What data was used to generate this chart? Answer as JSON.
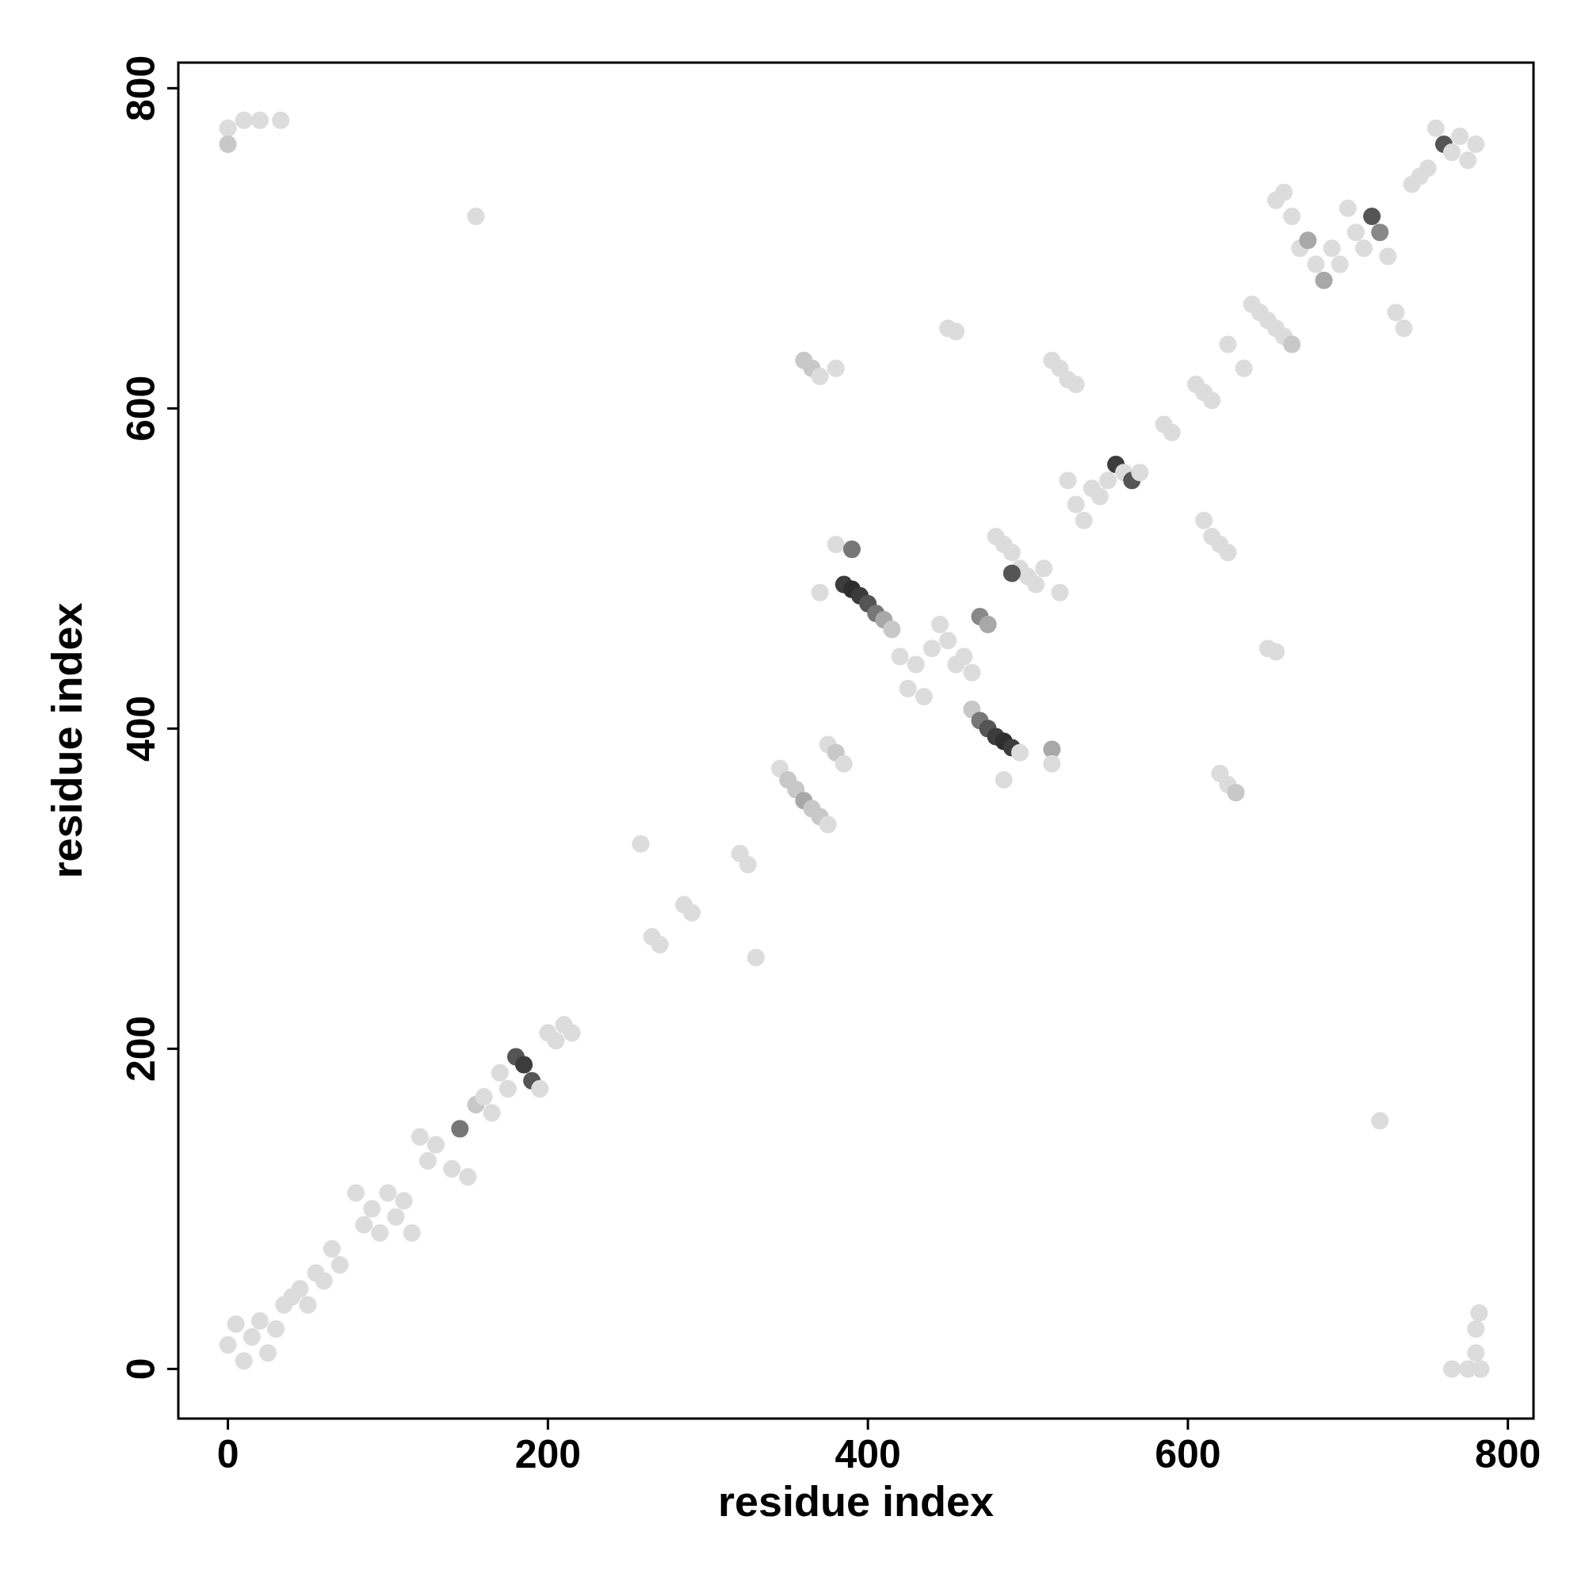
{
  "chart_data": {
    "type": "scatter",
    "xlabel": "residue index",
    "ylabel": "residue index",
    "xlim": [
      -31,
      816
    ],
    "ylim": [
      -31,
      816
    ],
    "xticks": [
      0,
      200,
      400,
      600,
      800
    ],
    "yticks": [
      0,
      200,
      400,
      600,
      800
    ],
    "marker": "circle",
    "x": [
      0,
      5,
      10,
      15,
      20,
      25,
      30,
      35,
      40,
      45,
      50,
      55,
      60,
      65,
      70,
      80,
      85,
      90,
      95,
      100,
      105,
      110,
      115,
      120,
      125,
      130,
      140,
      145,
      150,
      155,
      160,
      165,
      170,
      175,
      180,
      185,
      190,
      195,
      200,
      205,
      210,
      215,
      0,
      0,
      10,
      20,
      33,
      155,
      258,
      265,
      270,
      285,
      290,
      320,
      325,
      330,
      345,
      350,
      355,
      360,
      365,
      370,
      375,
      375,
      380,
      385,
      385,
      390,
      395,
      400,
      405,
      410,
      415,
      380,
      390,
      370,
      420,
      425,
      430,
      435,
      440,
      445,
      450,
      455,
      460,
      465,
      465,
      470,
      475,
      480,
      485,
      490,
      495,
      515,
      515,
      485,
      470,
      475,
      480,
      485,
      490,
      495,
      500,
      505,
      510,
      520,
      490,
      530,
      535,
      540,
      545,
      550,
      555,
      560,
      565,
      570,
      525,
      585,
      590,
      605,
      610,
      615,
      625,
      635,
      640,
      645,
      650,
      655,
      660,
      665,
      655,
      660,
      665,
      670,
      675,
      680,
      685,
      690,
      695,
      700,
      705,
      710,
      715,
      720,
      725,
      730,
      735,
      740,
      745,
      750,
      755,
      760,
      765,
      770,
      775,
      780,
      515,
      520,
      525,
      530,
      360,
      365,
      370,
      380,
      450,
      455,
      610,
      615,
      620,
      625,
      620,
      625,
      630,
      650,
      655,
      720,
      765,
      775,
      780,
      780,
      782,
      783
    ],
    "values": [
      15,
      28,
      5,
      20,
      30,
      10,
      25,
      40,
      45,
      50,
      40,
      60,
      55,
      75,
      65,
      110,
      90,
      100,
      85,
      110,
      95,
      105,
      85,
      145,
      130,
      140,
      125,
      150,
      120,
      165,
      170,
      160,
      185,
      175,
      195,
      190,
      180,
      175,
      210,
      205,
      215,
      210,
      775,
      765,
      780,
      780,
      780,
      720,
      328,
      270,
      265,
      290,
      285,
      322,
      315,
      257,
      375,
      368,
      362,
      355,
      350,
      345,
      340,
      390,
      385,
      378,
      490,
      487,
      483,
      478,
      472,
      468,
      462,
      515,
      512,
      485,
      445,
      425,
      440,
      420,
      450,
      465,
      455,
      440,
      445,
      435,
      412,
      405,
      400,
      395,
      392,
      388,
      385,
      387,
      378,
      368,
      470,
      465,
      520,
      515,
      510,
      500,
      495,
      490,
      500,
      485,
      497,
      540,
      530,
      550,
      545,
      555,
      565,
      560,
      555,
      560,
      555,
      590,
      585,
      615,
      610,
      605,
      640,
      625,
      665,
      660,
      655,
      650,
      645,
      640,
      730,
      735,
      720,
      700,
      705,
      690,
      680,
      700,
      690,
      725,
      710,
      700,
      720,
      710,
      695,
      660,
      650,
      740,
      745,
      750,
      775,
      765,
      760,
      770,
      755,
      765,
      630,
      625,
      618,
      615,
      630,
      625,
      620,
      625,
      650,
      648,
      530,
      520,
      515,
      510,
      372,
      365,
      360,
      450,
      448,
      155,
      0,
      0,
      10,
      25,
      35,
      0
    ],
    "colors": [
      "#dcdcdc",
      "#dcdcdc",
      "#dcdcdc",
      "#dcdcdc",
      "#dcdcdc",
      "#dcdcdc",
      "#dcdcdc",
      "#dcdcdc",
      "#dcdcdc",
      "#dcdcdc",
      "#dcdcdc",
      "#dcdcdc",
      "#dcdcdc",
      "#dcdcdc",
      "#dcdcdc",
      "#dcdcdc",
      "#dcdcdc",
      "#dcdcdc",
      "#dcdcdc",
      "#dcdcdc",
      "#dcdcdc",
      "#dcdcdc",
      "#dcdcdc",
      "#dcdcdc",
      "#dcdcdc",
      "#dcdcdc",
      "#dcdcdc",
      "#777777",
      "#dcdcdc",
      "#c8c8c8",
      "#dcdcdc",
      "#dcdcdc",
      "#dcdcdc",
      "#dcdcdc",
      "#555555",
      "#3c3c3c",
      "#555555",
      "#dcdcdc",
      "#dcdcdc",
      "#dcdcdc",
      "#dcdcdc",
      "#dcdcdc",
      "#dcdcdc",
      "#c8c8c8",
      "#dcdcdc",
      "#dcdcdc",
      "#dcdcdc",
      "#dcdcdc",
      "#dcdcdc",
      "#dcdcdc",
      "#dcdcdc",
      "#dcdcdc",
      "#dcdcdc",
      "#dcdcdc",
      "#dcdcdc",
      "#dcdcdc",
      "#dcdcdc",
      "#c8c8c8",
      "#c8c8c8",
      "#a8a8a8",
      "#c8c8c8",
      "#c8c8c8",
      "#dcdcdc",
      "#dcdcdc",
      "#c8c8c8",
      "#dcdcdc",
      "#3c3c3c",
      "#2e2e2e",
      "#3c3c3c",
      "#555555",
      "#777777",
      "#a8a8a8",
      "#c8c8c8",
      "#dcdcdc",
      "#777777",
      "#dcdcdc",
      "#dcdcdc",
      "#dcdcdc",
      "#dcdcdc",
      "#dcdcdc",
      "#dcdcdc",
      "#dcdcdc",
      "#dcdcdc",
      "#dcdcdc",
      "#dcdcdc",
      "#dcdcdc",
      "#c8c8c8",
      "#777777",
      "#555555",
      "#3c3c3c",
      "#2e2e2e",
      "#3c3c3c",
      "#dcdcdc",
      "#a8a8a8",
      "#dcdcdc",
      "#dcdcdc",
      "#888888",
      "#a8a8a8",
      "#dcdcdc",
      "#dcdcdc",
      "#dcdcdc",
      "#dcdcdc",
      "#dcdcdc",
      "#dcdcdc",
      "#dcdcdc",
      "#dcdcdc",
      "#555555",
      "#dcdcdc",
      "#dcdcdc",
      "#dcdcdc",
      "#dcdcdc",
      "#dcdcdc",
      "#3c3c3c",
      "#dcdcdc",
      "#555555",
      "#dcdcdc",
      "#dcdcdc",
      "#dcdcdc",
      "#dcdcdc",
      "#dcdcdc",
      "#dcdcdc",
      "#dcdcdc",
      "#dcdcdc",
      "#dcdcdc",
      "#dcdcdc",
      "#dcdcdc",
      "#dcdcdc",
      "#dcdcdc",
      "#dcdcdc",
      "#c8c8c8",
      "#dcdcdc",
      "#dcdcdc",
      "#dcdcdc",
      "#dcdcdc",
      "#a8a8a8",
      "#dcdcdc",
      "#a8a8a8",
      "#dcdcdc",
      "#dcdcdc",
      "#dcdcdc",
      "#dcdcdc",
      "#dcdcdc",
      "#555555",
      "#888888",
      "#dcdcdc",
      "#dcdcdc",
      "#dcdcdc",
      "#dcdcdc",
      "#dcdcdc",
      "#dcdcdc",
      "#dcdcdc",
      "#555555",
      "#dcdcdc",
      "#dcdcdc",
      "#dcdcdc",
      "#dcdcdc",
      "#dcdcdc",
      "#dcdcdc",
      "#dcdcdc",
      "#dcdcdc",
      "#c8c8c8",
      "#c8c8c8",
      "#dcdcdc",
      "#dcdcdc",
      "#dcdcdc",
      "#dcdcdc",
      "#dcdcdc",
      "#dcdcdc",
      "#dcdcdc",
      "#dcdcdc",
      "#dcdcdc",
      "#dcdcdc",
      "#c8c8c8",
      "#dcdcdc",
      "#dcdcdc",
      "#dcdcdc",
      "#dcdcdc",
      "#dcdcdc",
      "#dcdcdc",
      "#dcdcdc",
      "#dcdcdc",
      "#dcdcdc"
    ]
  }
}
